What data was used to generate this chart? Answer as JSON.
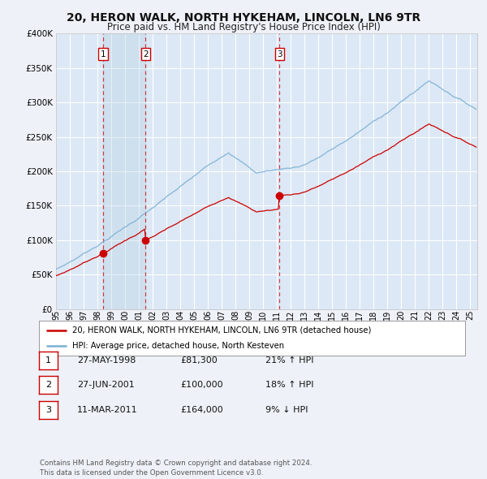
{
  "title": "20, HERON WALK, NORTH HYKEHAM, LINCOLN, LN6 9TR",
  "subtitle": "Price paid vs. HM Land Registry's House Price Index (HPI)",
  "title_fontsize": 10,
  "subtitle_fontsize": 8.5,
  "bg_color": "#eef2f8",
  "plot_bg_color": "#dce8f5",
  "grid_color": "#ffffff",
  "sale_line_color": "#cc0000",
  "hpi_line_color": "#7aafd4",
  "sale_marker_color": "#cc0000",
  "dashed_line_color": "#cc0000",
  "transactions": [
    {
      "date_num": 1998.41,
      "price": 81300,
      "label": "1"
    },
    {
      "date_num": 2001.49,
      "price": 100000,
      "label": "2"
    },
    {
      "date_num": 2011.19,
      "price": 164000,
      "label": "3"
    }
  ],
  "legend_sale": "20, HERON WALK, NORTH HYKEHAM, LINCOLN, LN6 9TR (detached house)",
  "legend_hpi": "HPI: Average price, detached house, North Kesteven",
  "table_rows": [
    {
      "num": "1",
      "date": "27-MAY-1998",
      "price": "£81,300",
      "change": "21% ↑ HPI"
    },
    {
      "num": "2",
      "date": "27-JUN-2001",
      "price": "£100,000",
      "change": "18% ↑ HPI"
    },
    {
      "num": "3",
      "date": "11-MAR-2011",
      "price": "£164,000",
      "change": "9% ↓ HPI"
    }
  ],
  "footer": "Contains HM Land Registry data © Crown copyright and database right 2024.\nThis data is licensed under the Open Government Licence v3.0.",
  "ylim": [
    0,
    400000
  ],
  "yticks": [
    0,
    50000,
    100000,
    150000,
    200000,
    250000,
    300000,
    350000,
    400000
  ],
  "xlim": [
    1995.0,
    2025.5
  ],
  "xticks": [
    1995,
    1996,
    1997,
    1998,
    1999,
    2000,
    2001,
    2002,
    2003,
    2004,
    2005,
    2006,
    2007,
    2008,
    2009,
    2010,
    2011,
    2012,
    2013,
    2014,
    2015,
    2016,
    2017,
    2018,
    2019,
    2020,
    2021,
    2022,
    2023,
    2024,
    2025
  ]
}
